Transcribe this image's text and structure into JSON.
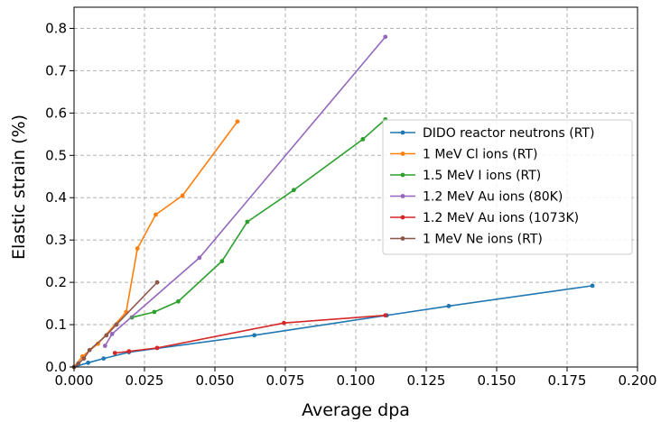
{
  "chart_data": {
    "type": "line",
    "title": "",
    "xlabel": "Average dpa",
    "ylabel": "Elastic strain (%)",
    "xlim": [
      0,
      0.2
    ],
    "ylim": [
      0,
      0.85
    ],
    "xticks": [
      0.0,
      0.025,
      0.05,
      0.075,
      0.1,
      0.125,
      0.15,
      0.175,
      0.2
    ],
    "xtick_labels": [
      "0.000",
      "0.025",
      "0.050",
      "0.075",
      "0.100",
      "0.125",
      "0.150",
      "0.175",
      "0.200"
    ],
    "yticks": [
      0.0,
      0.1,
      0.2,
      0.3,
      0.4,
      0.5,
      0.6,
      0.7,
      0.8
    ],
    "ytick_labels": [
      "0.0",
      "0.1",
      "0.2",
      "0.3",
      "0.4",
      "0.5",
      "0.6",
      "0.7",
      "0.8"
    ],
    "grid": true,
    "legend_position": "center-right",
    "series": [
      {
        "name": "DIDO reactor neutrons (RT)",
        "color": "#1f77b4",
        "x": [
          0.0,
          0.005,
          0.0105,
          0.0195,
          0.064,
          0.111,
          0.133,
          0.184
        ],
        "y": [
          0.0,
          0.01,
          0.02,
          0.035,
          0.075,
          0.122,
          0.144,
          0.192
        ]
      },
      {
        "name": "1 MeV Cl ions (RT)",
        "color": "#ff7f0e",
        "x": [
          0.0,
          0.003,
          0.0085,
          0.0185,
          0.0225,
          0.029,
          0.0385,
          0.058
        ],
        "y": [
          0.0,
          0.025,
          0.055,
          0.13,
          0.28,
          0.36,
          0.405,
          0.58
        ]
      },
      {
        "name": "1.5 MeV I ions (RT)",
        "color": "#2ca02c",
        "x": [
          0.0205,
          0.0285,
          0.037,
          0.0525,
          0.0615,
          0.078,
          0.1025,
          0.1105
        ],
        "y": [
          0.117,
          0.13,
          0.155,
          0.25,
          0.343,
          0.418,
          0.538,
          0.585
        ]
      },
      {
        "name": "1.2 MeV Au ions (80K)",
        "color": "#9467bd",
        "x": [
          0.011,
          0.0135,
          0.0445,
          0.1105
        ],
        "y": [
          0.05,
          0.078,
          0.258,
          0.78
        ]
      },
      {
        "name": "1.2 MeV Au ions (1073K)",
        "color": "#d62728",
        "x": [
          0.0145,
          0.0195,
          0.0295,
          0.0745,
          0.1105
        ],
        "y": [
          0.033,
          0.037,
          0.045,
          0.104,
          0.122
        ]
      },
      {
        "name": "1 MeV Ne ions (RT)",
        "color": "#8c564b",
        "x": [
          0.0,
          0.0015,
          0.0035,
          0.0055,
          0.0115,
          0.015,
          0.0295
        ],
        "y": [
          0.0,
          0.008,
          0.02,
          0.04,
          0.075,
          0.1,
          0.2
        ]
      }
    ]
  }
}
